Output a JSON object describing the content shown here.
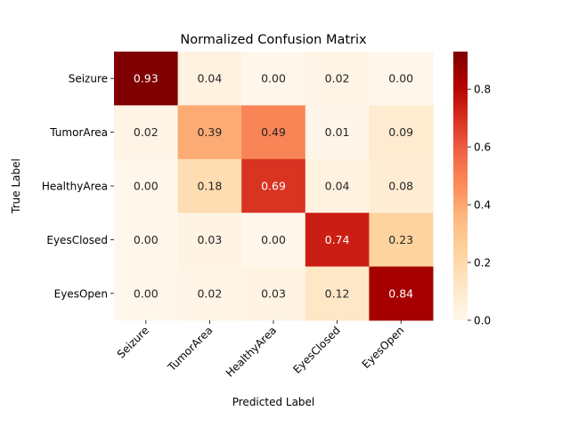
{
  "chart_data": {
    "type": "heatmap",
    "title": "Normalized Confusion Matrix",
    "xlabel": "Predicted Label",
    "ylabel": "True Label",
    "x_categories": [
      "Seizure",
      "TumorArea",
      "HealthyArea",
      "EyesClosed",
      "EyesOpen"
    ],
    "y_categories": [
      "Seizure",
      "TumorArea",
      "HealthyArea",
      "EyesClosed",
      "EyesOpen"
    ],
    "values": [
      [
        0.93,
        0.04,
        0.0,
        0.02,
        0.0
      ],
      [
        0.02,
        0.39,
        0.49,
        0.01,
        0.09
      ],
      [
        0.0,
        0.18,
        0.69,
        0.04,
        0.08
      ],
      [
        0.0,
        0.03,
        0.0,
        0.74,
        0.23
      ],
      [
        0.0,
        0.02,
        0.03,
        0.12,
        0.84
      ]
    ],
    "value_labels": [
      [
        "0.93",
        "0.04",
        "0.00",
        "0.02",
        "0.00"
      ],
      [
        "0.02",
        "0.39",
        "0.49",
        "0.01",
        "0.09"
      ],
      [
        "0.00",
        "0.18",
        "0.69",
        "0.04",
        "0.08"
      ],
      [
        "0.00",
        "0.03",
        "0.00",
        "0.74",
        "0.23"
      ],
      [
        "0.00",
        "0.02",
        "0.03",
        "0.12",
        "0.84"
      ]
    ],
    "colormap": "OrRd",
    "colorbar": {
      "range": [
        0,
        0.93
      ],
      "ticks": [
        0.0,
        0.2,
        0.4,
        0.6,
        0.8
      ],
      "tick_labels": [
        "0.0",
        "0.2",
        "0.4",
        "0.6",
        "0.8"
      ]
    },
    "colors": {
      "low": "#fff7ec",
      "high": "#7f0000"
    }
  }
}
